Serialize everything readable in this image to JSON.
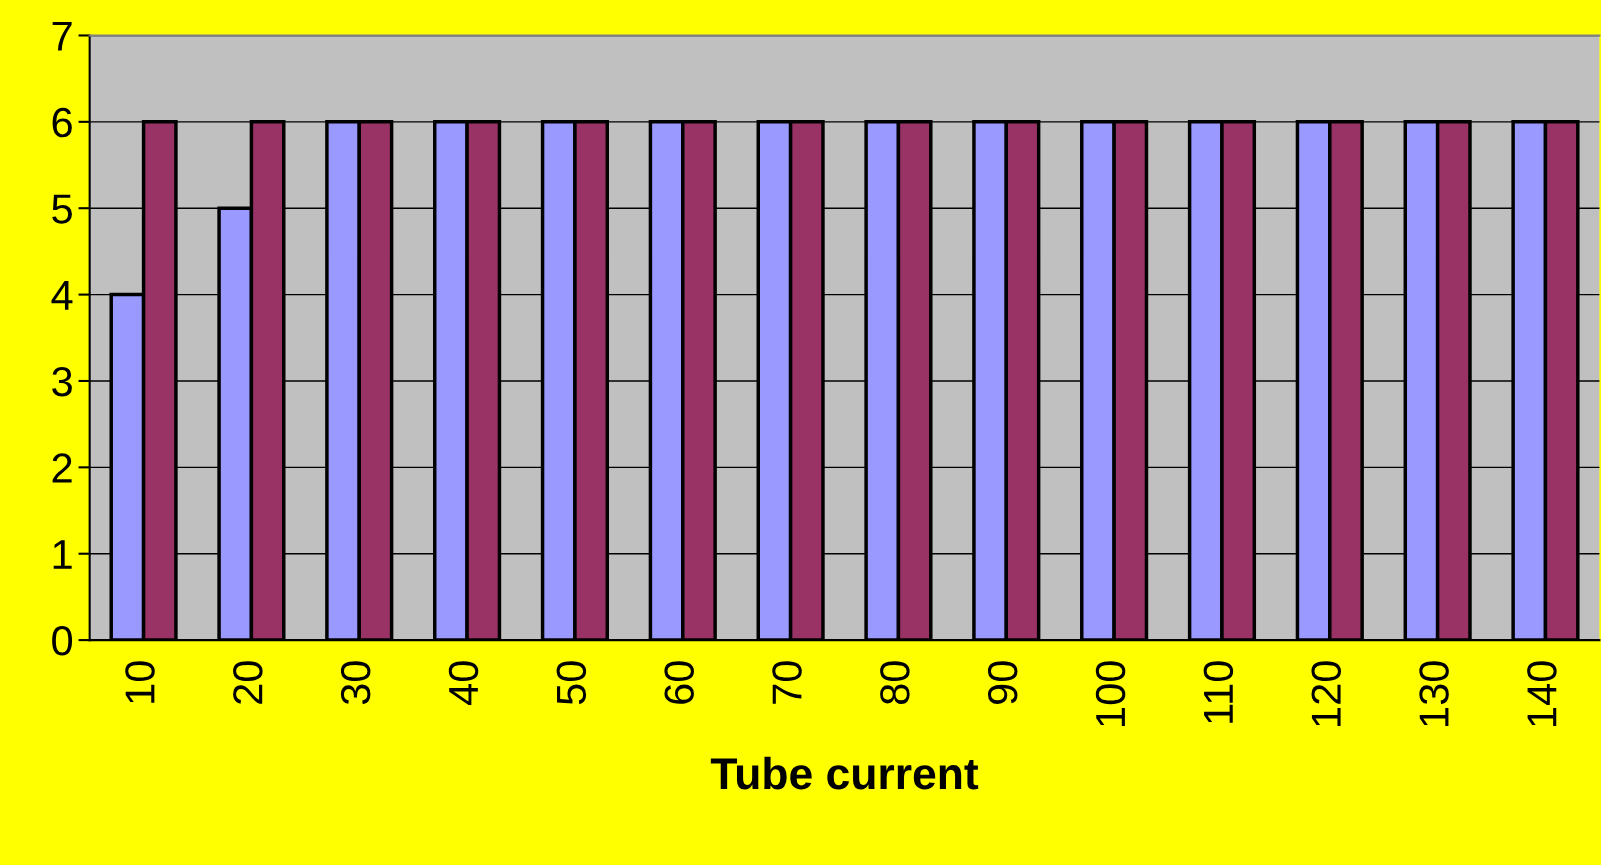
{
  "chart_data": {
    "type": "bar",
    "xlabel": "Tube current",
    "categories": [
      "10",
      "20",
      "30",
      "40",
      "50",
      "60",
      "70",
      "80",
      "90",
      "100",
      "110",
      "120",
      "130",
      "140"
    ],
    "series": [
      {
        "color": "#9999ff",
        "values": [
          4,
          5,
          6,
          6,
          6,
          6,
          6,
          6,
          6,
          6,
          6,
          6,
          6,
          6
        ]
      },
      {
        "color": "#993366",
        "values": [
          6,
          6,
          6,
          6,
          6,
          6,
          6,
          6,
          6,
          6,
          6,
          6,
          6,
          6
        ]
      }
    ],
    "ylim": [
      0,
      7
    ],
    "yticks": [
      0,
      1,
      2,
      3,
      4,
      5,
      6,
      7
    ],
    "grid": "y",
    "legend": false
  }
}
